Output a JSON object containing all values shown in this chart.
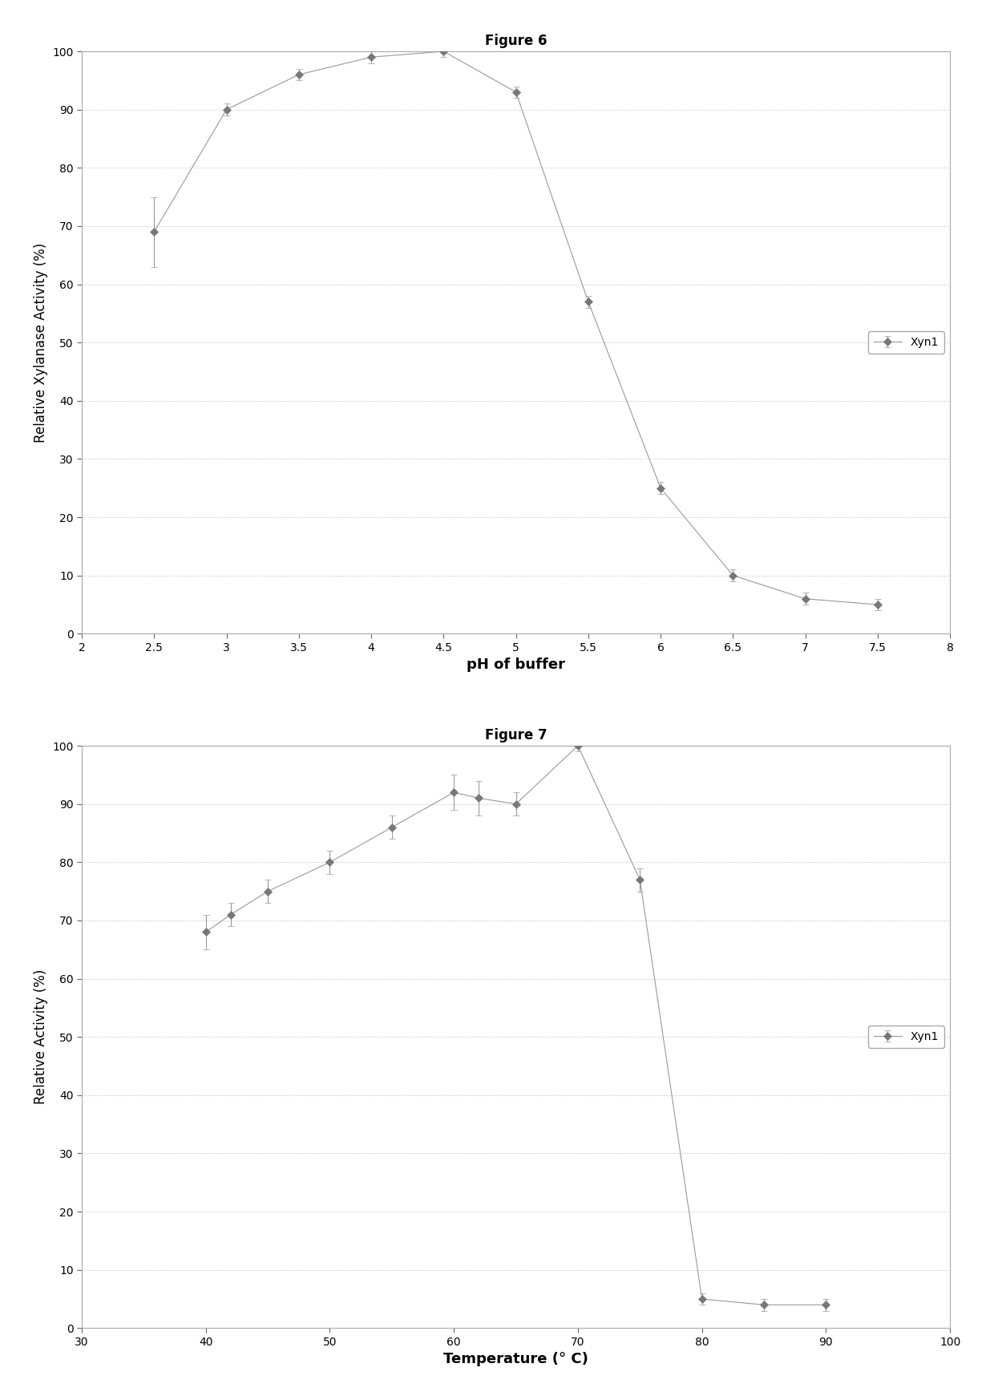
{
  "fig6": {
    "title": "Figure 6",
    "xlabel": "pH of buffer",
    "ylabel": "Relative Xylanase Activity (%)",
    "x": [
      2.5,
      3.0,
      3.5,
      4.0,
      4.5,
      5.0,
      5.5,
      6.0,
      6.5,
      7.0,
      7.5
    ],
    "y": [
      69,
      90,
      96,
      99,
      100,
      93,
      57,
      25,
      10,
      6,
      5
    ],
    "yerr": [
      6,
      1,
      1,
      1,
      1,
      1,
      1,
      1,
      1,
      1,
      1
    ],
    "xlim": [
      2,
      8
    ],
    "ylim": [
      0,
      100
    ],
    "xticks": [
      2,
      2.5,
      3,
      3.5,
      4,
      4.5,
      5,
      5.5,
      6,
      6.5,
      7,
      7.5,
      8
    ],
    "yticks": [
      0,
      10,
      20,
      30,
      40,
      50,
      60,
      70,
      80,
      90,
      100
    ],
    "legend_label": "Xyn1",
    "legend_loc": "center right",
    "line_color": "#999999",
    "marker": "D",
    "marker_color": "#777777",
    "marker_size": 5
  },
  "fig7": {
    "title": "Figure 7",
    "xlabel": "Temperature (° C)",
    "ylabel": "Relative Activity (%)",
    "x": [
      40,
      42,
      45,
      50,
      55,
      60,
      62,
      65,
      70,
      75,
      80,
      85,
      90
    ],
    "y": [
      68,
      71,
      75,
      80,
      86,
      92,
      91,
      90,
      100,
      77,
      5,
      4,
      4
    ],
    "yerr": [
      3,
      2,
      2,
      2,
      2,
      3,
      3,
      2,
      1,
      2,
      1,
      1,
      1
    ],
    "xlim": [
      30,
      100
    ],
    "ylim": [
      0,
      100
    ],
    "xticks": [
      30,
      40,
      50,
      60,
      70,
      80,
      90,
      100
    ],
    "yticks": [
      0,
      10,
      20,
      30,
      40,
      50,
      60,
      70,
      80,
      90,
      100
    ],
    "legend_label": "Xyn1",
    "legend_loc": "center right",
    "line_color": "#999999",
    "marker": "D",
    "marker_color": "#777777",
    "marker_size": 5
  },
  "background_color": "#ffffff",
  "plot_bg_color": "#ffffff",
  "outer_bg_color": "#e8e8e8",
  "grid_color": "#cccccc",
  "font_color": "#000000",
  "title_fontsize": 12,
  "label_fontsize": 12,
  "xlabel_fontsize": 13,
  "tick_fontsize": 10,
  "legend_fontsize": 10
}
